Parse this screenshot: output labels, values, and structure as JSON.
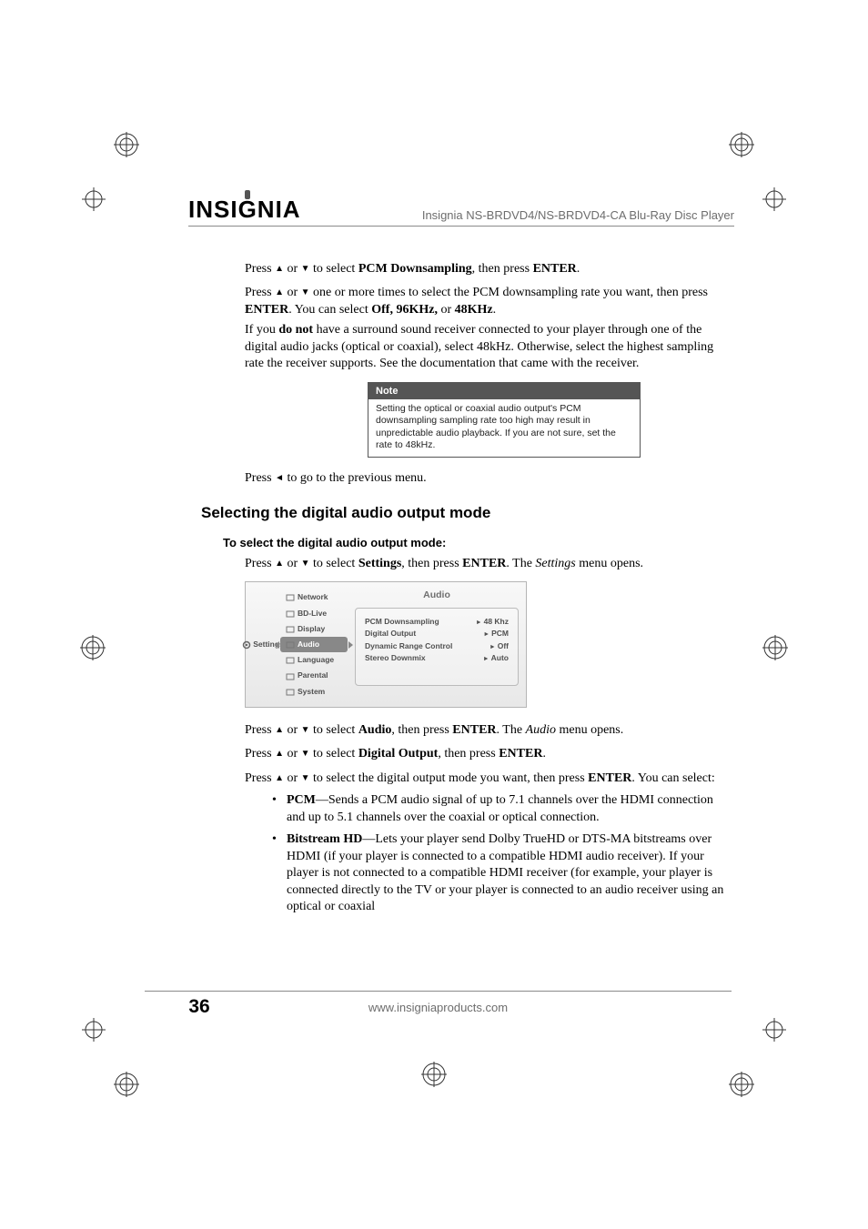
{
  "brand": "INSIGNIA",
  "header_title": "Insignia NS-BRDVD4/NS-BRDVD4-CA Blu-Ray Disc Player",
  "page_number": "36",
  "footer_url": "www.insigniaproducts.com",
  "arrows": {
    "up": "▲",
    "down": "▼",
    "left": "◄"
  },
  "step1": {
    "pre": "Press ",
    "mid": " or ",
    "after_arrows": " to select ",
    "target": "PCM Downsampling",
    "post": ", then press ",
    "enter": "ENTER",
    "end": "."
  },
  "step2": {
    "line1a": "Press ",
    "line1b": " or ",
    "line1c": " one or more times to select the PCM downsampling rate you want, then press ",
    "enter": "ENTER",
    "line1d": ". You can select ",
    "opts": "Off, 96KHz,",
    "or": " or ",
    "opt_last": "48KHz",
    "end": "."
  },
  "warn": {
    "a": "If you ",
    "b": "do not",
    "c": " have a surround sound receiver connected to your player through one of the digital audio jacks (optical or coaxial), select 48kHz. Otherwise, select the highest sampling rate the receiver supports. See the documentation that came with the receiver."
  },
  "note": {
    "label": "Note",
    "body": "Setting the optical or coaxial audio output's PCM downsampling sampling rate too high may result in unpredictable audio playback. If you are not sure, set the rate to 48kHz."
  },
  "prev": {
    "a": "Press ",
    "b": " to go to the previous menu."
  },
  "section_heading": "Selecting the digital audio output mode",
  "sub_heading": "To select the digital audio output mode:",
  "open_settings": {
    "a": "Press ",
    "b": " or ",
    "c": " to select ",
    "target": "Settings",
    "d": ", then press ",
    "enter": "ENTER",
    "e": ". The ",
    "ital": "Settings",
    "f": " menu opens."
  },
  "screenshot": {
    "left_label": "Settings",
    "menu": [
      "Network",
      "BD-Live",
      "Display",
      "Audio",
      "Language",
      "Parental",
      "System"
    ],
    "selected_index": 3,
    "panel_title": "Audio",
    "rows": [
      {
        "k": "PCM Downsampling",
        "v": "48 Khz"
      },
      {
        "k": "Digital Output",
        "v": "PCM"
      },
      {
        "k": "Dynamic Range Control",
        "v": "Off"
      },
      {
        "k": "Stereo Downmix",
        "v": "Auto"
      }
    ]
  },
  "audio_step": {
    "a": "Press ",
    "b": " or ",
    "c": " to select ",
    "target": "Audio",
    "d": ", then press ",
    "enter": "ENTER",
    "e": ". The ",
    "ital": "Audio",
    "f": " menu opens."
  },
  "digout_step": {
    "a": "Press ",
    "b": " or ",
    "c": " to select ",
    "target": "Digital Output",
    "d": ", then press ",
    "enter": "ENTER",
    "e": "."
  },
  "mode_step": {
    "a": "Press ",
    "b": " or ",
    "c": " to select the digital output mode you want, then press ",
    "enter": "ENTER",
    "d": ". You can select:"
  },
  "bullets": {
    "pcm": {
      "label": "PCM",
      "text": "—Sends a PCM audio signal of up to 7.1 channels over the HDMI connection and up to 5.1 channels over the coaxial or optical connection."
    },
    "bhd": {
      "label": "Bitstream HD",
      "text": "—Lets your player send Dolby TrueHD or DTS-MA bitstreams over HDMI (if your player is connected to a compatible HDMI audio receiver). If your player is not connected to a compatible HDMI receiver (for example, your player is connected directly to the TV or your player is connected to an audio receiver using an optical or coaxial"
    }
  },
  "colors": {
    "text": "#000000",
    "subtext": "#6d6d6d",
    "rule": "#8a8a8a",
    "note_bg": "#555555",
    "ss_border": "#b5b5b5",
    "ss_sel": "#888888"
  }
}
